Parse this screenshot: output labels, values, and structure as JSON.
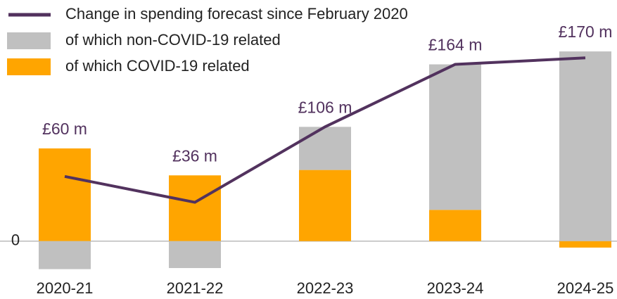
{
  "chart_data": {
    "type": "bar",
    "categories": [
      "2020-21",
      "2021-22",
      "2022-23",
      "2023-24",
      "2024-25"
    ],
    "series": [
      {
        "name": "of which COVID-19 related",
        "color": "#ffa500",
        "values": [
          86,
          61,
          66,
          29,
          -6
        ]
      },
      {
        "name": "of which non-COVID-19 related",
        "color": "#c0c0c0",
        "values": [
          -26,
          -25,
          40,
          135,
          176
        ]
      },
      {
        "name": "Change in spending forecast since February 2020",
        "type": "line",
        "color": "#52325e",
        "values": [
          60,
          36,
          106,
          164,
          170
        ],
        "value_labels": [
          "£60 m",
          "£36 m",
          "£106 m",
          "£164 m",
          "£170 m"
        ]
      }
    ],
    "ylim": [
      -40,
      210
    ],
    "yticks": [
      0
    ]
  }
}
